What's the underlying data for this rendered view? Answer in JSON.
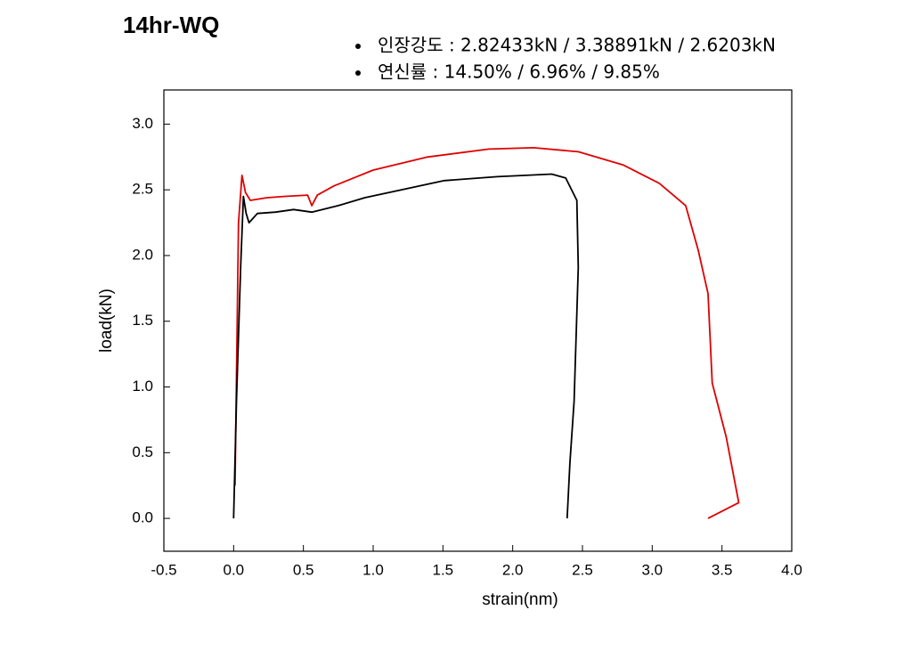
{
  "chart_data": {
    "type": "line",
    "title": "14hr-WQ",
    "annotations": [
      "인장강도 : 2.82433kN / 3.38891kN / 2.6203kN",
      "연신률 : 14.50% / 6.96% / 9.85%"
    ],
    "x_label": "strain(nm)",
    "y_label": "load(kN)",
    "xlim": [
      -0.5,
      4.0
    ],
    "ylim": [
      -0.25,
      3.26
    ],
    "xticks": [
      -0.5,
      {
        "value": 0,
        "label": "0.0"
      },
      0.5,
      {
        "value": 1,
        "label": "1.0"
      },
      1.5,
      {
        "value": 2,
        "label": "2.0"
      },
      2.5,
      {
        "value": 3,
        "label": "3.0"
      },
      3.5,
      {
        "value": 4,
        "label": "4.0"
      }
    ],
    "yticks": [
      {
        "value": 0,
        "label": "0.0"
      },
      0.5,
      {
        "value": 1,
        "label": "1.0"
      },
      1.5,
      {
        "value": 2,
        "label": "2.0"
      },
      2.5,
      {
        "value": 3,
        "label": "3.0"
      }
    ],
    "grid": false,
    "series": [
      {
        "color": "#e00000",
        "x": [
          0.01,
          0.035,
          0.06,
          0.085,
          0.12,
          0.24,
          0.37,
          0.53,
          0.56,
          0.6,
          0.72,
          1.0,
          1.39,
          1.83,
          2.15,
          2.47,
          2.79,
          3.05,
          3.24,
          3.33,
          3.4,
          3.43,
          3.53,
          3.62,
          3.4
        ],
        "values": [
          0.25,
          2.25,
          2.61,
          2.48,
          2.42,
          2.44,
          2.45,
          2.46,
          2.38,
          2.46,
          2.53,
          2.65,
          2.75,
          2.81,
          2.82,
          2.79,
          2.69,
          2.55,
          2.38,
          2.04,
          1.71,
          1.03,
          0.62,
          0.12,
          0.0
        ]
      },
      {
        "color": "#000000",
        "x": [
          0.0,
          0.02,
          0.05,
          0.07,
          0.09,
          0.11,
          0.17,
          0.3,
          0.43,
          0.56,
          0.75,
          0.94,
          1.2,
          1.51,
          1.89,
          2.28,
          2.38,
          2.46,
          2.47,
          2.44,
          2.41,
          2.39
        ],
        "values": [
          0.0,
          0.89,
          1.91,
          2.45,
          2.32,
          2.25,
          2.32,
          2.33,
          2.35,
          2.33,
          2.38,
          2.44,
          2.5,
          2.57,
          2.6,
          2.62,
          2.59,
          2.42,
          1.91,
          0.89,
          0.42,
          0.0
        ]
      }
    ]
  }
}
